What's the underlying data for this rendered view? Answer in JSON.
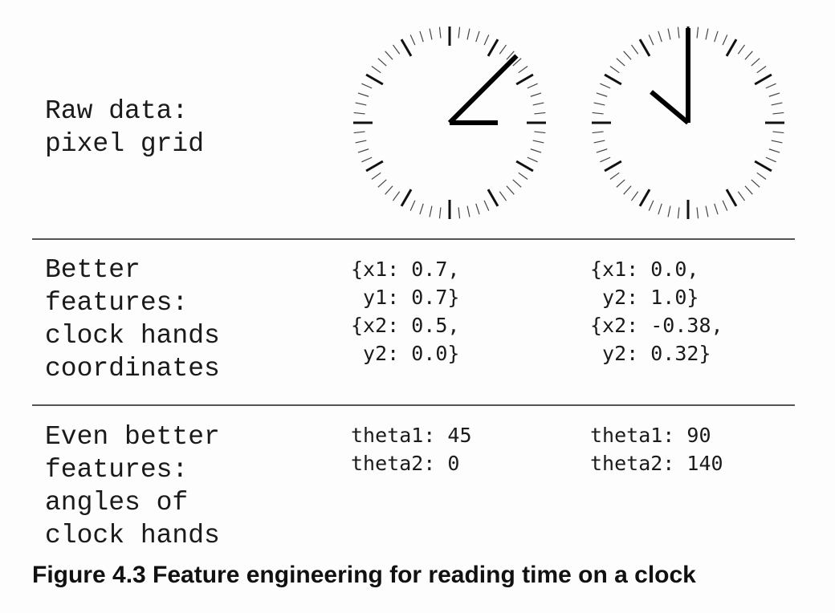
{
  "rows": [
    {
      "label": "Raw data:\npixel grid",
      "clocks": [
        {
          "hour_hand_angle_deg": 0,
          "minute_hand_angle_deg": 45
        },
        {
          "hour_hand_angle_deg": 140,
          "minute_hand_angle_deg": 90
        }
      ]
    },
    {
      "label": "Better\nfeatures:\nclock hands\ncoordinates",
      "left": "{x1: 0.7,\n y1: 0.7}\n{x2: 0.5,\n y2: 0.0}",
      "right": "{x1: 0.0,\n y2: 1.0}\n{x2: -0.38,\n y2: 0.32}"
    },
    {
      "label": "Even better\nfeatures:\nangles of\nclock hands",
      "left": "theta1: 45\ntheta2: 0",
      "right": "theta1: 90\ntheta2: 140"
    }
  ],
  "caption": "Figure 4.3 Feature engineering for reading time on a clock"
}
